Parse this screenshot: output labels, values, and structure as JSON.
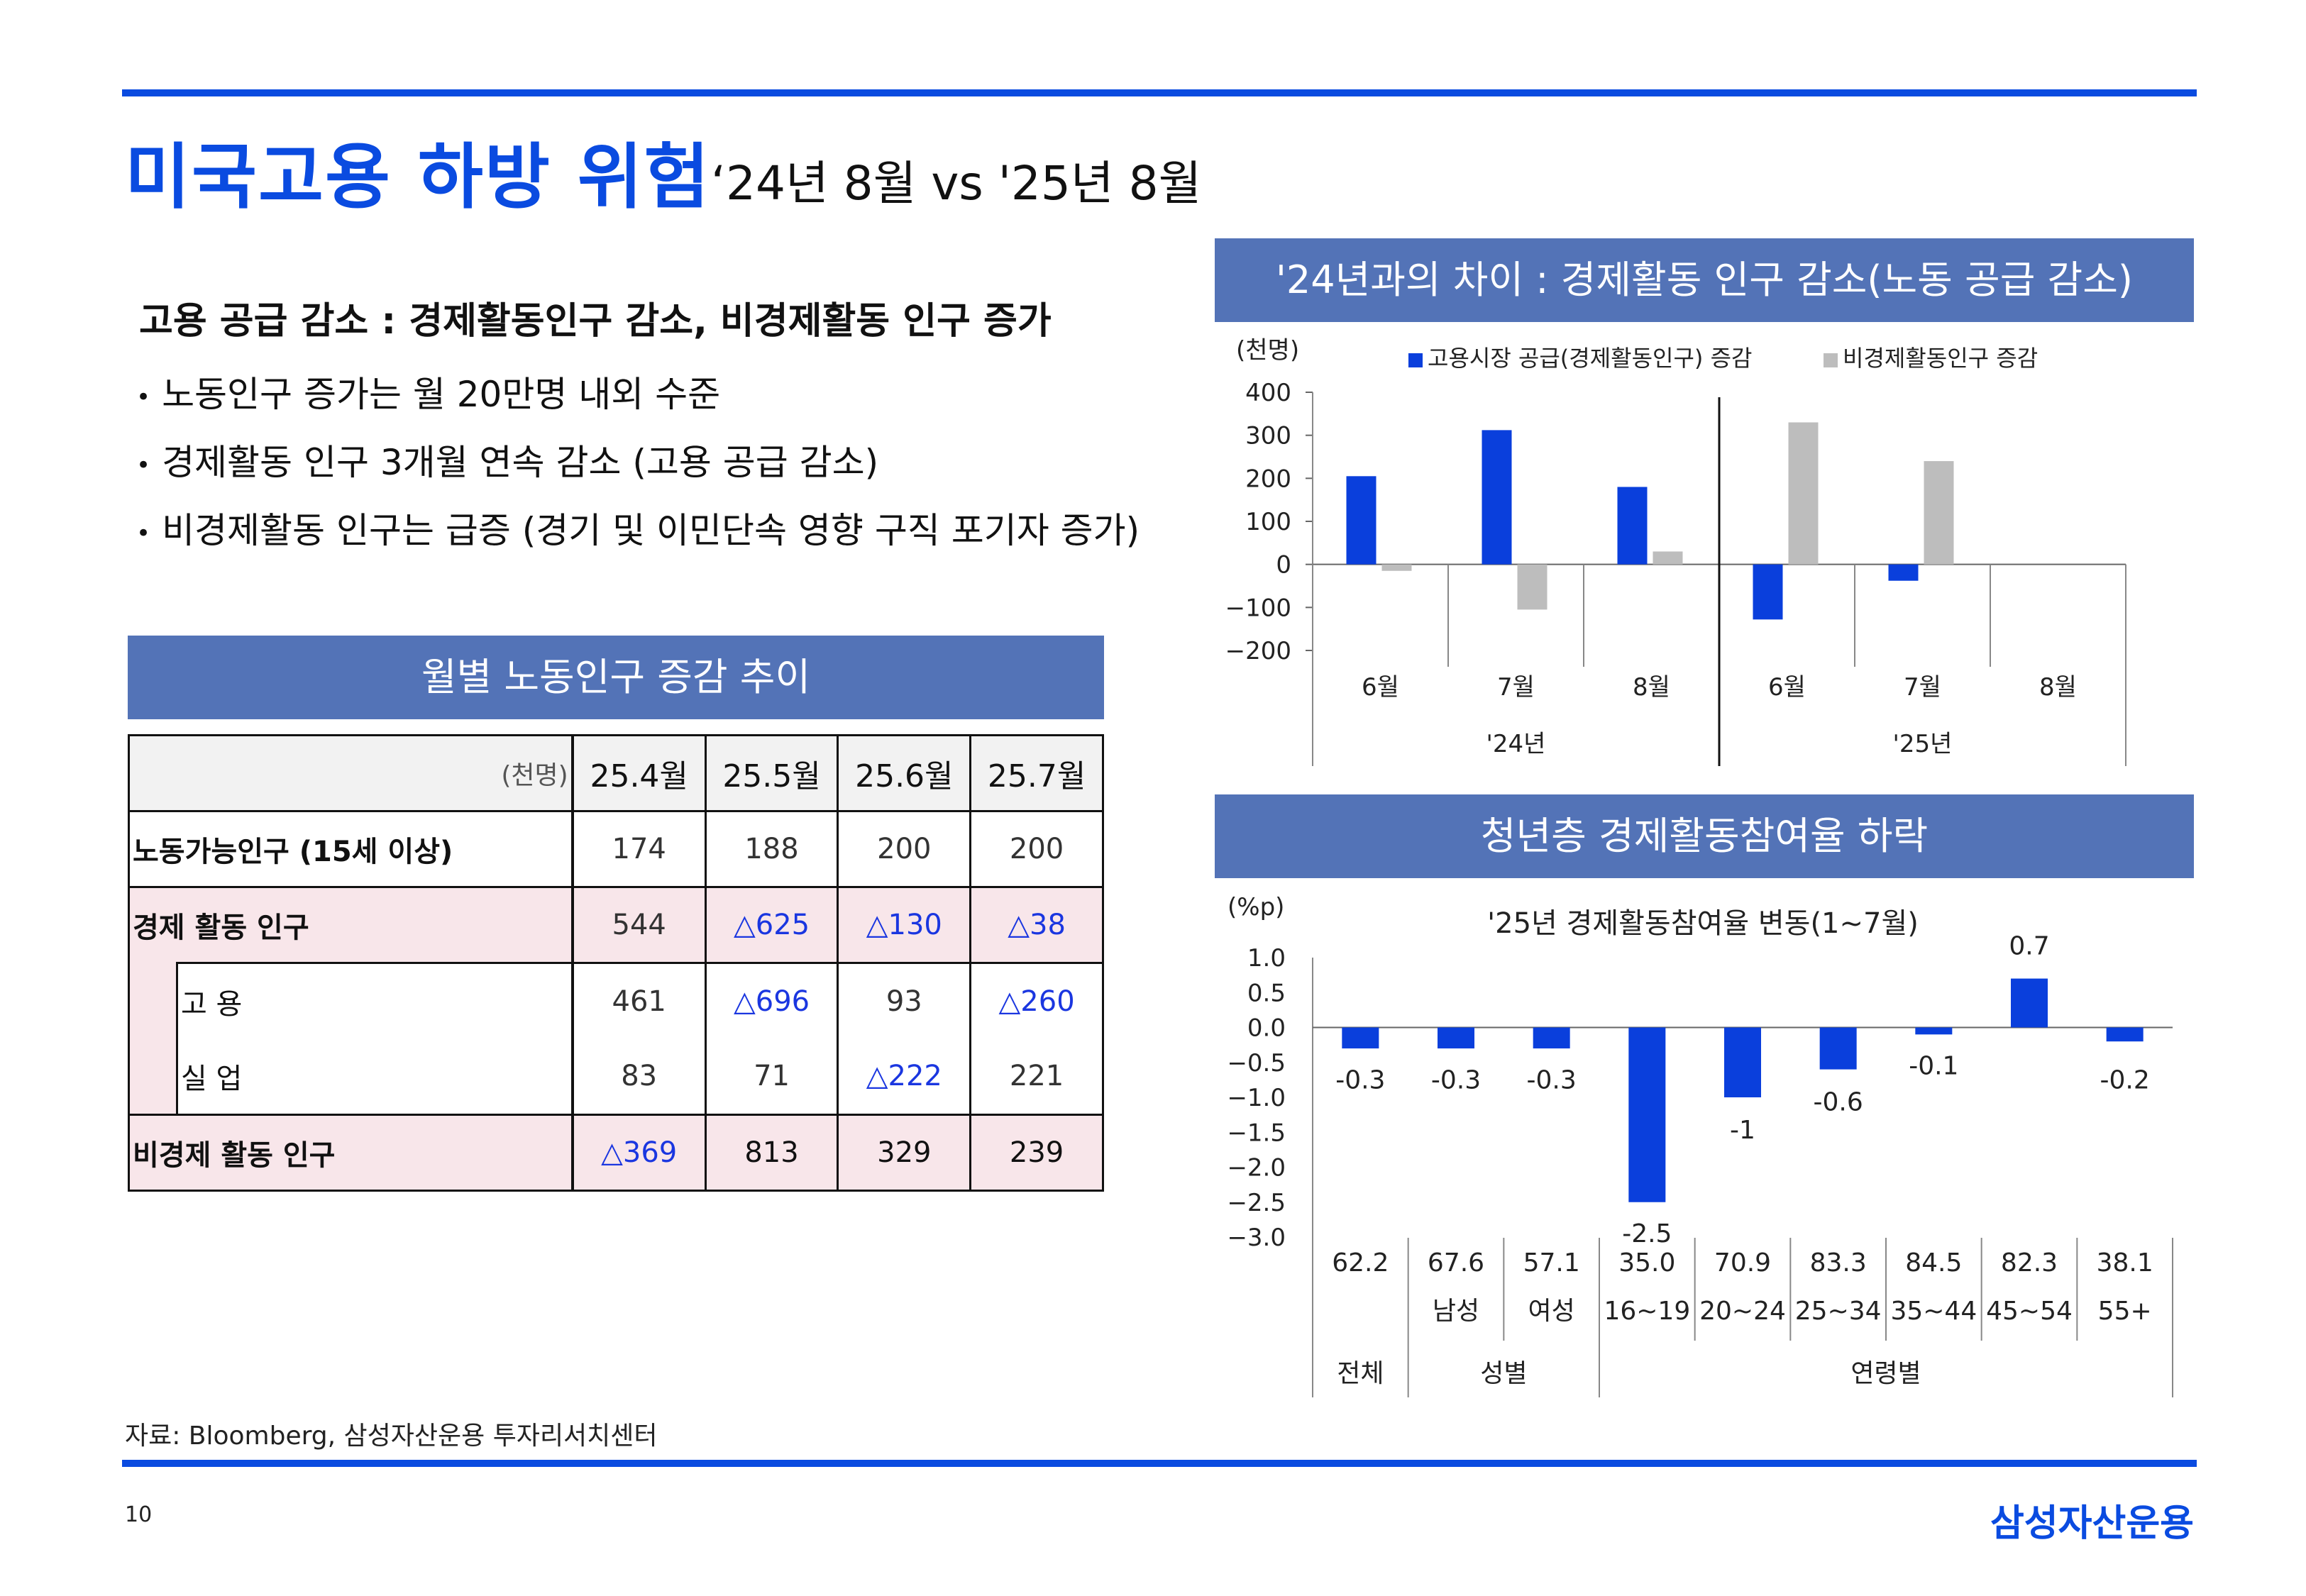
{
  "header": {
    "title": "미국고용 하방 위험",
    "subtitle": "‘24년 8월  vs  '25년 8월"
  },
  "summary": {
    "headline": "고용 공급 감소 : 경제활동인구 감소, 비경제활동 인구 증가",
    "bullets": [
      "노동인구 증가는 월 20만명 내외 수준",
      "경제활동 인구 3개월 연속 감소 (고용 공급 감소)",
      "비경제활동 인구는 급증 (경기 및 이민단속 영향 구직 포기자 증가)"
    ]
  },
  "table": {
    "title": "월별 노동인구 증감 추이",
    "unit": "(천명)",
    "columns": [
      "25.4월",
      "25.5월",
      "25.6월",
      "25.7월"
    ],
    "rows": [
      {
        "label": "노동가능인구 (15세 이상)",
        "values": [
          "174",
          "188",
          "200",
          "200"
        ]
      },
      {
        "label": "경제 활동 인구",
        "values": [
          "544",
          "△625",
          "△130",
          "△38"
        ]
      },
      {
        "label": "고        용",
        "values": [
          "461",
          "△696",
          "93",
          "△260"
        ]
      },
      {
        "label": "실        업",
        "values": [
          "83",
          "71",
          "△222",
          "221"
        ]
      },
      {
        "label": "비경제 활동 인구",
        "values": [
          "△369",
          "813",
          "329",
          "239"
        ]
      }
    ]
  },
  "chart1": {
    "header": "'24년과의 차이 : 경제활동 인구 감소(노동 공급 감소)",
    "unit": "(천명)"
  },
  "chart2": {
    "header": "청년층 경제활동참여율 하락",
    "unit": "(%p)",
    "title": "'25년 경제활동참여율 변동(1~7월)"
  },
  "chart_data": [
    {
      "type": "bar",
      "unit": "(천명)",
      "categories": [
        "6월",
        "7월",
        "8월",
        "6월",
        "7월",
        "8월"
      ],
      "groups": [
        "'24년",
        "'25년"
      ],
      "series": [
        {
          "name": "고용시장 공급(경제활동인구) 증감",
          "color": "#0a3fdc",
          "values": [
            205,
            312,
            180,
            -128,
            -38,
            0
          ]
        },
        {
          "name": "비경제활동인구 증감",
          "color": "#bdbdbd",
          "values": [
            -15,
            -105,
            30,
            330,
            240,
            0
          ]
        }
      ],
      "ylim": [
        -200,
        400
      ],
      "yticks": [
        "400",
        "300",
        "200",
        "100",
        "0",
        "−100",
        "−200"
      ]
    },
    {
      "type": "bar",
      "title": "'25년 경제활동참여율 변동(1~7월)",
      "unit": "(%p)",
      "categories": [
        "전체",
        "남성",
        "여성",
        "16~19",
        "20~24",
        "25~34",
        "35~44",
        "45~54",
        "55+"
      ],
      "base_rates": [
        "62.2",
        "67.6",
        "57.1",
        "35.0",
        "70.9",
        "83.3",
        "84.5",
        "82.3",
        "38.1"
      ],
      "sub_labels": [
        "",
        "남성",
        "여성",
        "16~19",
        "20~24",
        "25~34",
        "35~44",
        "45~54",
        "55+"
      ],
      "groups": [
        "전체",
        "성별",
        "연령별"
      ],
      "values": [
        -0.3,
        -0.3,
        -0.3,
        -2.5,
        -1.0,
        -0.6,
        -0.1,
        0.7,
        -0.2
      ],
      "data_labels": [
        "-0.3",
        "-0.3",
        "-0.3",
        "-2.5",
        "-1",
        "-0.6",
        "-0.1",
        "0.7",
        "-0.2"
      ],
      "ylim": [
        -3.0,
        1.0
      ],
      "yticks": [
        "1.0",
        "0.5",
        "0.0",
        "−0.5",
        "−1.0",
        "−1.5",
        "−2.0",
        "−2.5",
        "−3.0"
      ],
      "color": "#0a3fdc"
    }
  ],
  "footer": {
    "source": "자료: Bloomberg, 삼성자산운용 투자리서치센터",
    "page": "10",
    "brand": "삼성자산운용"
  }
}
